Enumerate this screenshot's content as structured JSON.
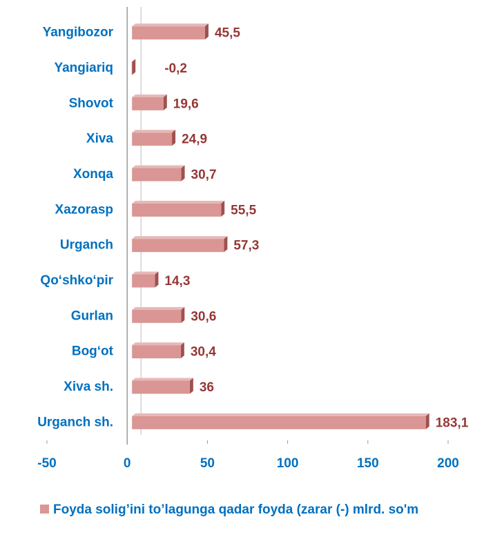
{
  "chart_data": {
    "type": "bar",
    "orientation": "horizontal",
    "categories": [
      "Yangibozor",
      "Yangiariq",
      "Shovot",
      "Xiva",
      "Xonqa",
      "Xazorasp",
      "Urganch",
      "Qo‘shko‘pir",
      "Gurlan",
      "Bog‘ot",
      "Xiva sh.",
      "Urganch sh."
    ],
    "series": [
      {
        "name": "Foyda solig’ini to’lagunga qadar foyda (zarar (-) mlrd. so'm",
        "color": "#d99694",
        "values": [
          45.5,
          -0.2,
          19.6,
          24.9,
          30.7,
          55.5,
          57.3,
          14.3,
          30.6,
          30.4,
          36,
          183.1
        ],
        "value_labels": [
          "45,5",
          "-0,2",
          "19,6",
          "24,9",
          "30,7",
          "55,5",
          "57,3",
          "14,3",
          "30,6",
          "30,4",
          "36",
          "183,1"
        ]
      }
    ],
    "xlim": [
      -50,
      200
    ],
    "xticks": [
      -50,
      0,
      50,
      100,
      150,
      200
    ],
    "legend": "bottom"
  }
}
